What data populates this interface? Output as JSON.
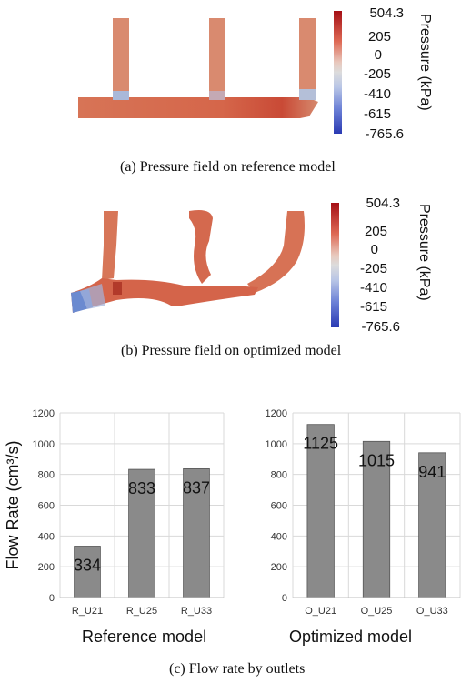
{
  "figure": {
    "caption_a": "(a) Pressure field on reference model",
    "caption_b": "(b) Pressure field on optimized model",
    "caption_c": "(c) Flow rate by outlets",
    "colorbar_a": {
      "title": "Pressure (kPa)",
      "labels": [
        "504.3",
        "205",
        "0",
        "-205",
        "-410",
        "-615",
        "-765.6"
      ]
    },
    "colorbar_b": {
      "title": "Pressure (kPa)",
      "labels": [
        "504.3",
        "205",
        "0",
        "-205",
        "-410",
        "-615",
        "-765.6"
      ]
    },
    "colors": {
      "high": "#b2182b",
      "mid": "#dddddd",
      "low": "#2c3fb8",
      "field": "#d3664c",
      "bar": "#8a8a8a"
    }
  },
  "chart_data": [
    {
      "type": "bar",
      "title": "Reference model",
      "ylabel": "Flow Rate (cm³/s)",
      "xlabel": "",
      "categories": [
        "R_U21",
        "R_U25",
        "R_U33"
      ],
      "values": [
        334,
        833,
        837
      ],
      "ylim": [
        0,
        1200
      ],
      "yticks": [
        0,
        200,
        400,
        600,
        800,
        1000,
        1200
      ],
      "grid": true
    },
    {
      "type": "bar",
      "title": "Optimized model",
      "ylabel": "",
      "xlabel": "",
      "categories": [
        "O_U21",
        "O_U25",
        "O_U33"
      ],
      "values": [
        1125,
        1015,
        941
      ],
      "ylim": [
        0,
        1200
      ],
      "yticks": [
        0,
        200,
        400,
        600,
        800,
        1000,
        1200
      ],
      "grid": true
    }
  ]
}
